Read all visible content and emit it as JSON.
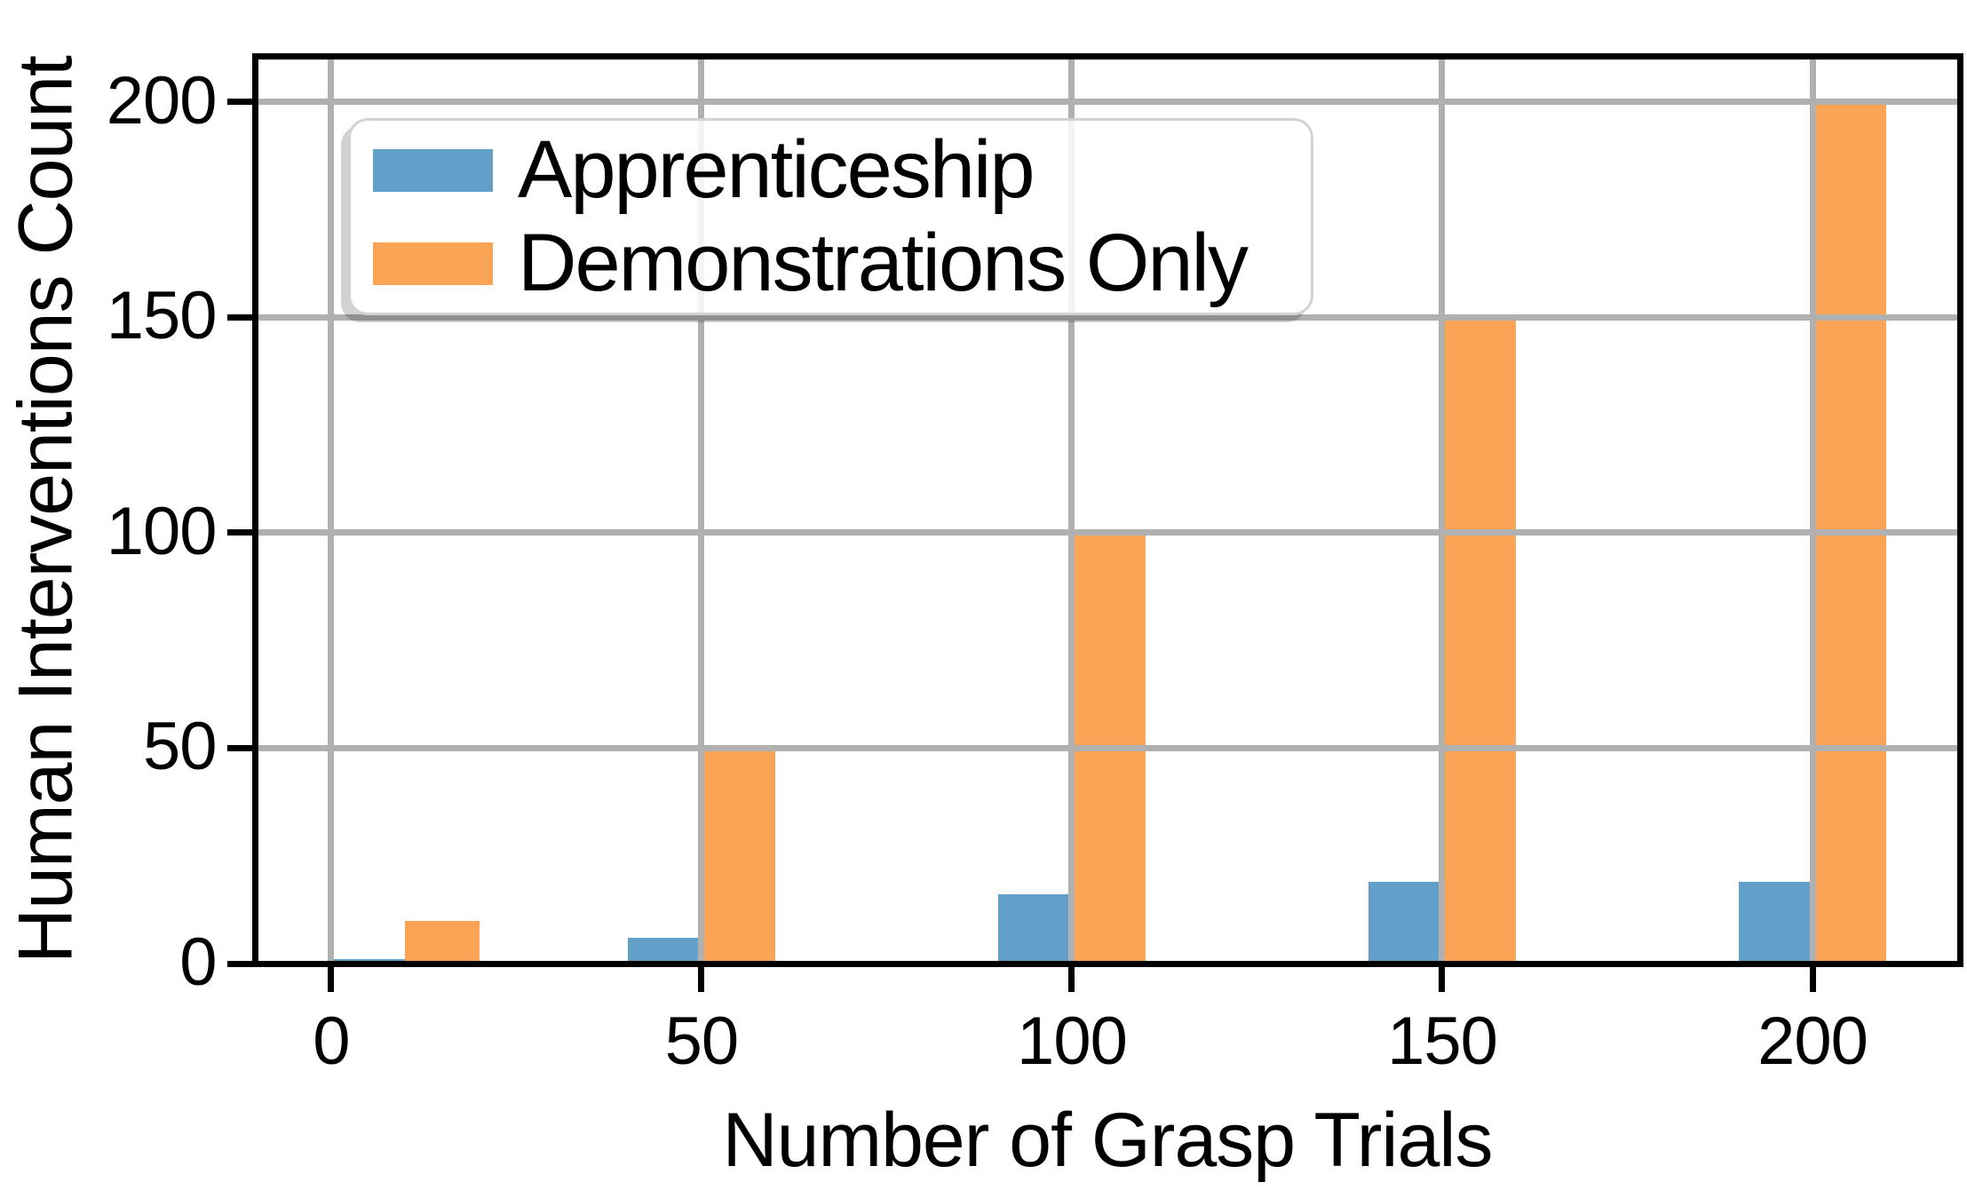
{
  "chart_data": {
    "type": "bar",
    "title": "",
    "xlabel": "Number of Grasp Trials",
    "ylabel": "Human Interventions Count",
    "x": [
      10,
      50,
      100,
      150,
      200
    ],
    "series": [
      {
        "name": "Apprenticeship",
        "color": "#62A0CA",
        "values": [
          1,
          6,
          16,
          19,
          19
        ]
      },
      {
        "name": "Demonstrations Only",
        "color": "#FCA455",
        "values": [
          10,
          50,
          100,
          150,
          200
        ]
      }
    ],
    "bar_width_data_units": 10,
    "xticks": [
      0,
      50,
      100,
      150,
      200
    ],
    "yticks": [
      0,
      50,
      100,
      150,
      200
    ],
    "xlim": [
      -10.3,
      219.9
    ],
    "ylim": [
      0,
      210.7
    ],
    "grid": true,
    "grid_color": "#b0b0b0",
    "background_color": "#ffffff",
    "spine_color": "#000000",
    "legend_position": "upper-left",
    "legend_labels": [
      "Apprenticeship",
      "Demonstrations Only"
    ]
  }
}
